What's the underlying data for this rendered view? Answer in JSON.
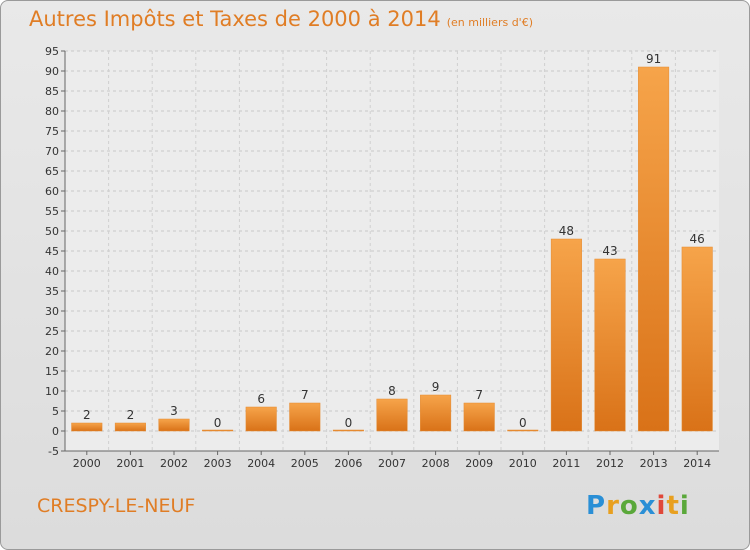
{
  "title": "Autres Impôts et Taxes de 2000 à 2014",
  "subtitle": "(en milliers d'€)",
  "commune": "CRESPY-LE-NEUF",
  "brand": {
    "letters": [
      {
        "ch": "P",
        "color": "#2a8fd6"
      },
      {
        "ch": "r",
        "color": "#e8a020"
      },
      {
        "ch": "o",
        "color": "#5aa83a"
      },
      {
        "ch": "x",
        "color": "#2a8fd6"
      },
      {
        "ch": "i",
        "color": "#e0483a"
      },
      {
        "ch": "t",
        "color": "#e8a020"
      },
      {
        "ch": "i",
        "color": "#5aa83a"
      }
    ]
  },
  "chart_data": {
    "type": "bar",
    "categories": [
      "2000",
      "2001",
      "2002",
      "2003",
      "2004",
      "2005",
      "2006",
      "2007",
      "2008",
      "2009",
      "2010",
      "2011",
      "2012",
      "2013",
      "2014"
    ],
    "values": [
      2,
      2,
      3,
      0,
      6,
      7,
      0,
      8,
      9,
      7,
      0,
      48,
      43,
      91,
      46
    ],
    "ylim": [
      -5,
      95
    ],
    "yticks": [
      -5,
      0,
      5,
      10,
      15,
      20,
      25,
      30,
      35,
      40,
      45,
      50,
      55,
      60,
      65,
      70,
      75,
      80,
      85,
      90,
      95
    ],
    "grid": true,
    "bar_color": "#f0922e"
  }
}
